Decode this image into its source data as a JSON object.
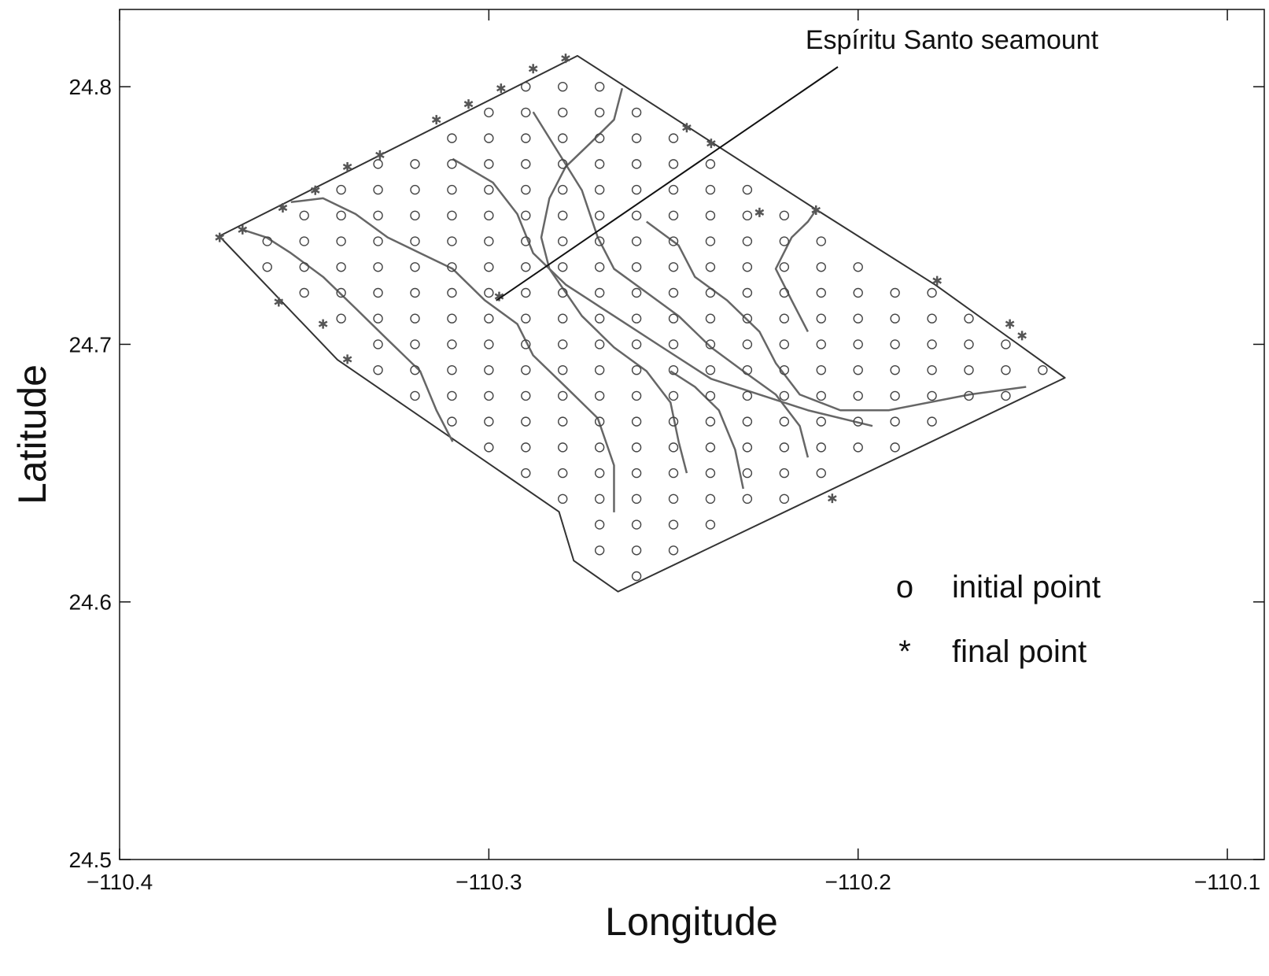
{
  "chart_data": {
    "type": "line",
    "x_label": "Longitude",
    "y_label": "Latitude",
    "xlim": [
      -110.4,
      -110.09
    ],
    "ylim": [
      24.5,
      24.83
    ],
    "xticks": [
      {
        "value": -110.4,
        "label": "−110.4"
      },
      {
        "value": -110.3,
        "label": "−110.3"
      },
      {
        "value": -110.2,
        "label": "−110.2"
      },
      {
        "value": -110.1,
        "label": "−110.1"
      }
    ],
    "yticks": [
      24.5,
      24.6,
      24.7,
      24.8
    ],
    "annotation": {
      "text": "Espíritu Santo seamount",
      "x": -110.298,
      "y": 24.717
    },
    "series": [
      {
        "type": "line",
        "color": "#333333",
        "x": [
          -110.373,
          -110.276,
          -110.211,
          -110.179,
          -110.144,
          -110.265,
          -110.277,
          -110.281,
          -110.341,
          -110.373
        ],
        "y": [
          24.742,
          24.812,
          24.752,
          24.723,
          24.687,
          24.604,
          24.616,
          24.635,
          24.694,
          24.742
        ]
      },
      {
        "type": "scatter",
        "name": "initial point",
        "marker": "o",
        "color": "#444444",
        "x": [
          -110.29,
          -110.28,
          -110.27,
          -110.3,
          -110.29,
          -110.28,
          -110.27,
          -110.26,
          -110.31,
          -110.3,
          -110.29,
          -110.28,
          -110.27,
          -110.26,
          -110.25,
          -110.33,
          -110.32,
          -110.31,
          -110.3,
          -110.29,
          -110.28,
          -110.27,
          -110.26,
          -110.25,
          -110.24,
          -110.34,
          -110.33,
          -110.32,
          -110.31,
          -110.3,
          -110.29,
          -110.28,
          -110.27,
          -110.26,
          -110.25,
          -110.24,
          -110.23,
          -110.35,
          -110.34,
          -110.33,
          -110.32,
          -110.31,
          -110.3,
          -110.29,
          -110.28,
          -110.27,
          -110.26,
          -110.25,
          -110.24,
          -110.23,
          -110.22,
          -110.36,
          -110.35,
          -110.34,
          -110.33,
          -110.32,
          -110.31,
          -110.3,
          -110.29,
          -110.28,
          -110.27,
          -110.26,
          -110.25,
          -110.24,
          -110.23,
          -110.22,
          -110.21,
          -110.36,
          -110.35,
          -110.34,
          -110.33,
          -110.32,
          -110.31,
          -110.3,
          -110.29,
          -110.28,
          -110.27,
          -110.26,
          -110.25,
          -110.24,
          -110.23,
          -110.22,
          -110.21,
          -110.2,
          -110.35,
          -110.34,
          -110.33,
          -110.32,
          -110.31,
          -110.3,
          -110.29,
          -110.28,
          -110.27,
          -110.26,
          -110.25,
          -110.24,
          -110.23,
          -110.22,
          -110.21,
          -110.2,
          -110.19,
          -110.18,
          -110.34,
          -110.33,
          -110.32,
          -110.31,
          -110.3,
          -110.29,
          -110.28,
          -110.27,
          -110.26,
          -110.25,
          -110.24,
          -110.23,
          -110.22,
          -110.21,
          -110.2,
          -110.19,
          -110.18,
          -110.17,
          -110.33,
          -110.32,
          -110.31,
          -110.3,
          -110.29,
          -110.28,
          -110.27,
          -110.26,
          -110.25,
          -110.24,
          -110.23,
          -110.22,
          -110.21,
          -110.2,
          -110.19,
          -110.18,
          -110.17,
          -110.16,
          -110.33,
          -110.32,
          -110.31,
          -110.3,
          -110.29,
          -110.28,
          -110.27,
          -110.26,
          -110.25,
          -110.24,
          -110.23,
          -110.22,
          -110.21,
          -110.2,
          -110.19,
          -110.18,
          -110.17,
          -110.16,
          -110.15,
          -110.32,
          -110.31,
          -110.3,
          -110.29,
          -110.28,
          -110.27,
          -110.26,
          -110.25,
          -110.24,
          -110.23,
          -110.22,
          -110.21,
          -110.2,
          -110.19,
          -110.18,
          -110.17,
          -110.16,
          -110.31,
          -110.3,
          -110.29,
          -110.28,
          -110.27,
          -110.26,
          -110.25,
          -110.24,
          -110.23,
          -110.22,
          -110.21,
          -110.2,
          -110.19,
          -110.18,
          -110.3,
          -110.29,
          -110.28,
          -110.27,
          -110.26,
          -110.25,
          -110.24,
          -110.23,
          -110.22,
          -110.21,
          -110.2,
          -110.19,
          -110.29,
          -110.28,
          -110.27,
          -110.26,
          -110.25,
          -110.24,
          -110.23,
          -110.22,
          -110.21,
          -110.28,
          -110.27,
          -110.26,
          -110.25,
          -110.24,
          -110.23,
          -110.22,
          -110.27,
          -110.26,
          -110.25,
          -110.24,
          -110.27,
          -110.26,
          -110.25,
          -110.26
        ],
        "y": [
          24.8,
          24.8,
          24.8,
          24.79,
          24.79,
          24.79,
          24.79,
          24.79,
          24.78,
          24.78,
          24.78,
          24.78,
          24.78,
          24.78,
          24.78,
          24.77,
          24.77,
          24.77,
          24.77,
          24.77,
          24.77,
          24.77,
          24.77,
          24.77,
          24.77,
          24.76,
          24.76,
          24.76,
          24.76,
          24.76,
          24.76,
          24.76,
          24.76,
          24.76,
          24.76,
          24.76,
          24.76,
          24.75,
          24.75,
          24.75,
          24.75,
          24.75,
          24.75,
          24.75,
          24.75,
          24.75,
          24.75,
          24.75,
          24.75,
          24.75,
          24.75,
          24.74,
          24.74,
          24.74,
          24.74,
          24.74,
          24.74,
          24.74,
          24.74,
          24.74,
          24.74,
          24.74,
          24.74,
          24.74,
          24.74,
          24.74,
          24.74,
          24.73,
          24.73,
          24.73,
          24.73,
          24.73,
          24.73,
          24.73,
          24.73,
          24.73,
          24.73,
          24.73,
          24.73,
          24.73,
          24.73,
          24.73,
          24.73,
          24.73,
          24.72,
          24.72,
          24.72,
          24.72,
          24.72,
          24.72,
          24.72,
          24.72,
          24.72,
          24.72,
          24.72,
          24.72,
          24.72,
          24.72,
          24.72,
          24.72,
          24.72,
          24.72,
          24.71,
          24.71,
          24.71,
          24.71,
          24.71,
          24.71,
          24.71,
          24.71,
          24.71,
          24.71,
          24.71,
          24.71,
          24.71,
          24.71,
          24.71,
          24.71,
          24.71,
          24.71,
          24.7,
          24.7,
          24.7,
          24.7,
          24.7,
          24.7,
          24.7,
          24.7,
          24.7,
          24.7,
          24.7,
          24.7,
          24.7,
          24.7,
          24.7,
          24.7,
          24.7,
          24.7,
          24.69,
          24.69,
          24.69,
          24.69,
          24.69,
          24.69,
          24.69,
          24.69,
          24.69,
          24.69,
          24.69,
          24.69,
          24.69,
          24.69,
          24.69,
          24.69,
          24.69,
          24.69,
          24.69,
          24.68,
          24.68,
          24.68,
          24.68,
          24.68,
          24.68,
          24.68,
          24.68,
          24.68,
          24.68,
          24.68,
          24.68,
          24.68,
          24.68,
          24.68,
          24.68,
          24.68,
          24.67,
          24.67,
          24.67,
          24.67,
          24.67,
          24.67,
          24.67,
          24.67,
          24.67,
          24.67,
          24.67,
          24.67,
          24.67,
          24.67,
          24.66,
          24.66,
          24.66,
          24.66,
          24.66,
          24.66,
          24.66,
          24.66,
          24.66,
          24.66,
          24.66,
          24.66,
          24.65,
          24.65,
          24.65,
          24.65,
          24.65,
          24.65,
          24.65,
          24.65,
          24.65,
          24.64,
          24.64,
          24.64,
          24.64,
          24.64,
          24.64,
          24.64,
          24.63,
          24.63,
          24.63,
          24.63,
          24.62,
          24.62,
          24.62,
          24.61
        ]
      },
      {
        "type": "scatter",
        "name": "final point",
        "marker": "*",
        "color": "#555555",
        "x": [
          -110.3729,
          -110.3667,
          -110.3558,
          -110.347,
          -110.3383,
          -110.3295,
          -110.3142,
          -110.3055,
          -110.2967,
          -110.288,
          -110.2792,
          -110.2464,
          -110.2398,
          -110.2267,
          -110.2114,
          -110.1786,
          -110.1589,
          -110.1556,
          -110.207,
          -110.3569,
          -110.3449,
          -110.3383,
          -110.2972
        ],
        "y": [
          24.7415,
          24.7445,
          24.753,
          24.7598,
          24.7689,
          24.7735,
          24.7872,
          24.7933,
          24.7994,
          24.807,
          24.811,
          24.7841,
          24.778,
          24.7512,
          24.7521,
          24.7247,
          24.7079,
          24.7034,
          24.6402,
          24.7165,
          24.7079,
          24.6942,
          24.7186
        ]
      },
      {
        "type": "line",
        "color": "#666666",
        "x": [
          -110.1961,
          -110.2136,
          -110.2267,
          -110.2398,
          -110.253,
          -110.2661,
          -110.2792,
          -110.288,
          -110.2923,
          -110.2989,
          -110.3098
        ],
        "y": [
          24.6683,
          24.6744,
          24.6805,
          24.6866,
          24.6988,
          24.711,
          24.7232,
          24.7354,
          24.7506,
          24.7628,
          24.772
        ]
      },
      {
        "type": "line",
        "color": "#666666",
        "x": [
          -110.2464,
          -110.2486,
          -110.2508,
          -110.2573,
          -110.2661,
          -110.2748,
          -110.2836,
          -110.2858,
          -110.2836,
          -110.2792,
          -110.2726,
          -110.2661,
          -110.2639
        ],
        "y": [
          24.65,
          24.6622,
          24.6774,
          24.6896,
          24.6988,
          24.711,
          24.7293,
          24.7415,
          24.7567,
          24.7689,
          24.778,
          24.7872,
          24.7994
        ]
      },
      {
        "type": "line",
        "color": "#666666",
        "x": [
          -110.2661,
          -110.2661,
          -110.2705,
          -110.2792,
          -110.288,
          -110.2923,
          -110.3011,
          -110.3098,
          -110.3186,
          -110.3274,
          -110.3361,
          -110.3449,
          -110.3536
        ],
        "y": [
          24.6348,
          24.653,
          24.6713,
          24.6835,
          24.6957,
          24.7079,
          24.7171,
          24.7293,
          24.7354,
          24.7415,
          24.7506,
          24.7567,
          24.7552
        ]
      },
      {
        "type": "line",
        "color": "#666666",
        "x": [
          -110.2136,
          -110.2158,
          -110.2223,
          -110.2311,
          -110.2398,
          -110.2486,
          -110.2573,
          -110.2661,
          -110.2705,
          -110.2748,
          -110.2814,
          -110.288
        ],
        "y": [
          24.6561,
          24.6683,
          24.6805,
          24.6896,
          24.6988,
          24.711,
          24.7201,
          24.7293,
          24.7415,
          24.7598,
          24.775,
          24.7902
        ]
      },
      {
        "type": "line",
        "color": "#666666",
        "x": [
          -110.1545,
          -110.1698,
          -110.1917,
          -110.2048,
          -110.2158,
          -110.2223,
          -110.2267,
          -110.2355,
          -110.2442,
          -110.2486,
          -110.2573
        ],
        "y": [
          24.6835,
          24.6805,
          24.6744,
          24.6744,
          24.6805,
          24.6927,
          24.7049,
          24.7171,
          24.7262,
          24.7384,
          24.7476
        ]
      },
      {
        "type": "line",
        "color": "#666666",
        "x": [
          -110.3098,
          -110.3142,
          -110.3186,
          -110.3274,
          -110.3361,
          -110.3449,
          -110.3536,
          -110.3602,
          -110.3667
        ],
        "y": [
          24.6622,
          24.6744,
          24.6896,
          24.7018,
          24.714,
          24.7262,
          24.7354,
          24.7415,
          24.7445
        ]
      },
      {
        "type": "line",
        "color": "#666666",
        "x": [
          -110.2136,
          -110.218,
          -110.2223,
          -110.218,
          -110.2136,
          -110.2114
        ],
        "y": [
          24.7049,
          24.7171,
          24.7293,
          24.7415,
          24.7476,
          24.7521
        ]
      },
      {
        "type": "line",
        "color": "#666666",
        "x": [
          -110.2311,
          -110.2333,
          -110.2377,
          -110.2442,
          -110.2508
        ],
        "y": [
          24.6439,
          24.6591,
          24.6744,
          24.6835,
          24.6896
        ]
      }
    ]
  }
}
